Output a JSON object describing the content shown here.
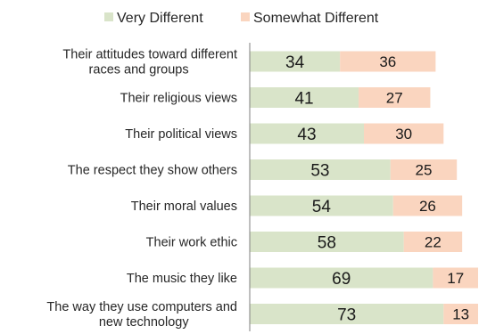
{
  "chart_data": {
    "type": "bar",
    "orientation": "horizontal",
    "stacked": true,
    "categories": [
      [
        "Their attitudes toward different",
        "races and groups"
      ],
      [
        "Their religious views"
      ],
      [
        "Their political views"
      ],
      [
        "The respect they show others"
      ],
      [
        "Their moral values"
      ],
      [
        "Their work ethic"
      ],
      [
        "The music they like"
      ],
      [
        "The way they use computers and",
        "new technology"
      ]
    ],
    "series": [
      {
        "name": "Very Different",
        "values": [
          34,
          41,
          43,
          53,
          54,
          58,
          69,
          73
        ],
        "color": "#d9e4c9"
      },
      {
        "name": "Somewhat Different",
        "values": [
          36,
          27,
          30,
          25,
          26,
          22,
          17,
          13
        ],
        "color": "#fad5bf"
      }
    ],
    "xlim": [
      0,
      86
    ],
    "grid": false,
    "legend_position": "top",
    "data_labels": true
  }
}
